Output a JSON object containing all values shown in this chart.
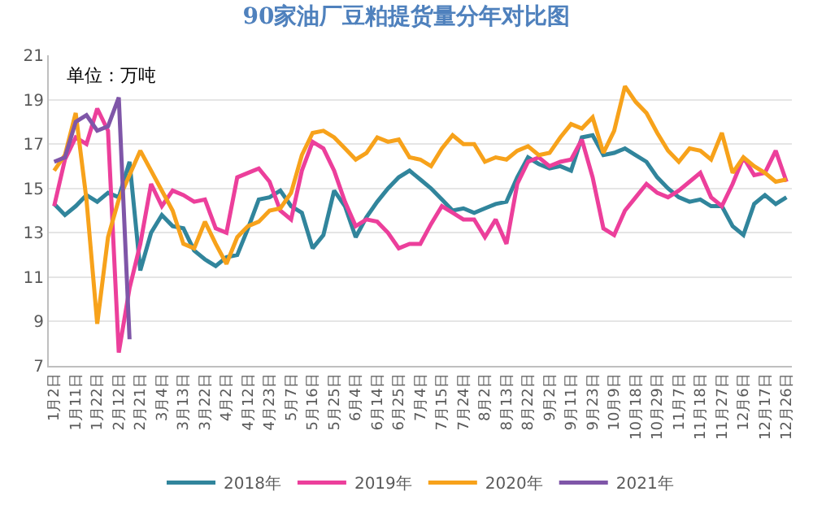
{
  "chart_data": {
    "type": "line",
    "title": "90家油厂豆粕提货量分年对比图",
    "annotations": [
      "单位：万吨"
    ],
    "categories": [
      "1月2日",
      null,
      "1月11日",
      null,
      "1月22日",
      null,
      "2月12日",
      null,
      "2月21日",
      null,
      "3月4日",
      null,
      "3月13日",
      null,
      "3月22日",
      null,
      "4月2日",
      null,
      "4月12日",
      null,
      "4月23日",
      null,
      "5月7日",
      null,
      "5月16日",
      null,
      "5月25日",
      null,
      "6月4日",
      null,
      "6月14日",
      null,
      "6月25日",
      null,
      "7月4日",
      null,
      "7月15日",
      null,
      "7月24日",
      null,
      "8月2日",
      null,
      "8月13日",
      null,
      "8月22日",
      null,
      "9月2日",
      null,
      "9月11日",
      null,
      "9月23日",
      null,
      "10月9日",
      null,
      "10月18日",
      null,
      "10月29日",
      null,
      "11月7日",
      null,
      "11月18日",
      null,
      "11月27日",
      null,
      "12月6日",
      null,
      "12月17日",
      null,
      "12月26日"
    ],
    "series": [
      {
        "name": "2018年",
        "color": "#31859c",
        "values": [
          14.3,
          13.8,
          14.2,
          14.7,
          14.4,
          14.8,
          14.6,
          16.2,
          11.3,
          13.0,
          13.8,
          13.3,
          13.2,
          12.2,
          11.8,
          11.5,
          11.9,
          12.0,
          13.2,
          14.5,
          14.6,
          14.9,
          14.2,
          13.9,
          12.3,
          12.9,
          14.9,
          14.2,
          12.8,
          13.7,
          14.4,
          15.0,
          15.5,
          15.8,
          15.4,
          15.0,
          14.5,
          14.0,
          14.1,
          13.9,
          14.1,
          14.3,
          14.4,
          15.5,
          16.4,
          16.1,
          15.9,
          16.0,
          15.8,
          17.3,
          17.4,
          16.5,
          16.6,
          16.8,
          16.5,
          16.2,
          15.5,
          15.0,
          14.6,
          14.4,
          14.5,
          14.2,
          14.2,
          13.3,
          12.9,
          14.3,
          14.7,
          14.3,
          14.6
        ]
      },
      {
        "name": "2019年",
        "color": "#ec3f9b",
        "values": [
          14.2,
          16.3,
          17.3,
          17.0,
          18.6,
          17.6,
          7.6,
          10.5,
          12.5,
          15.2,
          14.2,
          14.9,
          14.7,
          14.4,
          14.5,
          13.2,
          13.0,
          15.5,
          15.7,
          15.9,
          15.3,
          14.0,
          13.6,
          15.8,
          17.1,
          16.8,
          15.8,
          14.4,
          13.3,
          13.6,
          13.5,
          13.0,
          12.3,
          12.5,
          12.5,
          13.4,
          14.2,
          13.9,
          13.6,
          13.6,
          12.8,
          13.6,
          12.5,
          15.2,
          16.2,
          16.4,
          16.0,
          16.2,
          16.3,
          17.2,
          15.5,
          13.2,
          12.9,
          14.0,
          14.6,
          15.2,
          14.8,
          14.6,
          14.9,
          15.3,
          15.7,
          14.6,
          14.2,
          15.2,
          16.4,
          15.6,
          15.7,
          16.7,
          15.3
        ]
      },
      {
        "name": "2020年",
        "color": "#f7a21b",
        "values": [
          15.8,
          16.5,
          18.4,
          14.5,
          8.9,
          12.8,
          14.5,
          15.6,
          16.7,
          15.8,
          14.9,
          14.0,
          12.5,
          12.3,
          13.5,
          12.5,
          11.6,
          12.8,
          13.3,
          13.5,
          14.0,
          14.1,
          14.8,
          16.5,
          17.5,
          17.6,
          17.3,
          16.8,
          16.3,
          16.6,
          17.3,
          17.1,
          17.2,
          16.4,
          16.3,
          16.0,
          16.8,
          17.4,
          17.0,
          17.0,
          16.2,
          16.4,
          16.3,
          16.7,
          16.9,
          16.5,
          16.6,
          17.3,
          17.9,
          17.7,
          18.2,
          16.6,
          17.6,
          19.6,
          18.9,
          18.4,
          17.5,
          16.7,
          16.2,
          16.8,
          16.7,
          16.3,
          17.5,
          15.7,
          16.4,
          16.0,
          15.7,
          15.3,
          15.4
        ]
      },
      {
        "name": "2021年",
        "color": "#7f56a8",
        "values": [
          16.2,
          16.4,
          18.0,
          18.3,
          17.6,
          17.8,
          19.1,
          8.2,
          null,
          null,
          null,
          null,
          null,
          null,
          null,
          null,
          null,
          null,
          null,
          null,
          null,
          null,
          null,
          null,
          null,
          null,
          null,
          null,
          null,
          null,
          null,
          null,
          null,
          null,
          null,
          null,
          null,
          null,
          null,
          null,
          null,
          null,
          null,
          null,
          null,
          null,
          null,
          null,
          null,
          null,
          null,
          null,
          null,
          null,
          null,
          null,
          null,
          null,
          null,
          null,
          null,
          null,
          null,
          null,
          null,
          null,
          null,
          null,
          null
        ]
      }
    ],
    "ylim": [
      7,
      21
    ],
    "yticks": [
      7,
      9,
      11,
      13,
      15,
      17,
      19,
      21
    ],
    "grid": "y",
    "legend": "bottom",
    "marker": "none",
    "line_style": "solid"
  }
}
